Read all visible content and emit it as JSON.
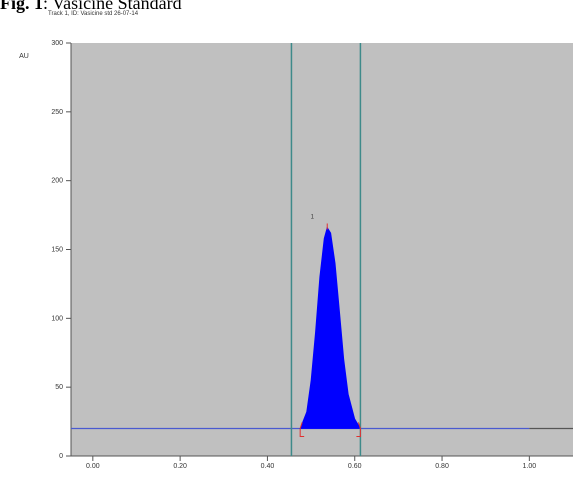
{
  "figure": {
    "label": "Fig. 1",
    "caption": ": Vasicine Standard"
  },
  "chart_data": {
    "type": "area",
    "title": "Track 1, ID: Vasicine std 26-07-14",
    "xlabel": "",
    "ylabel": "AU",
    "xlim": [
      -0.05,
      1.1
    ],
    "ylim": [
      0,
      300
    ],
    "xticks": [
      0.0,
      0.2,
      0.4,
      0.6,
      0.8,
      1.0
    ],
    "xtick_labels": [
      "0.00",
      "0.20",
      "0.40",
      "0.60",
      "0.80",
      "1.00"
    ],
    "yticks": [
      0,
      50,
      100,
      150,
      200,
      250,
      300
    ],
    "ytick_labels": [
      "0",
      "50",
      "100",
      "150",
      "200",
      "250",
      "300"
    ],
    "baseline": 20,
    "peak_label": "1",
    "peak": {
      "x": [
        0.475,
        0.49,
        0.5,
        0.51,
        0.52,
        0.53,
        0.537,
        0.545,
        0.555,
        0.565,
        0.575,
        0.585,
        0.6,
        0.613
      ],
      "y": [
        20,
        32,
        55,
        90,
        130,
        158,
        166,
        162,
        140,
        105,
        70,
        45,
        27,
        20
      ]
    },
    "window_lines_x": [
      0.455,
      0.613
    ],
    "colors": {
      "plot_background": "#c0c0c0",
      "peak_fill": "#0000ff",
      "baseline": "#4a5ad0",
      "window_lines": "#3e8a8a",
      "markers": "#e03030"
    }
  }
}
